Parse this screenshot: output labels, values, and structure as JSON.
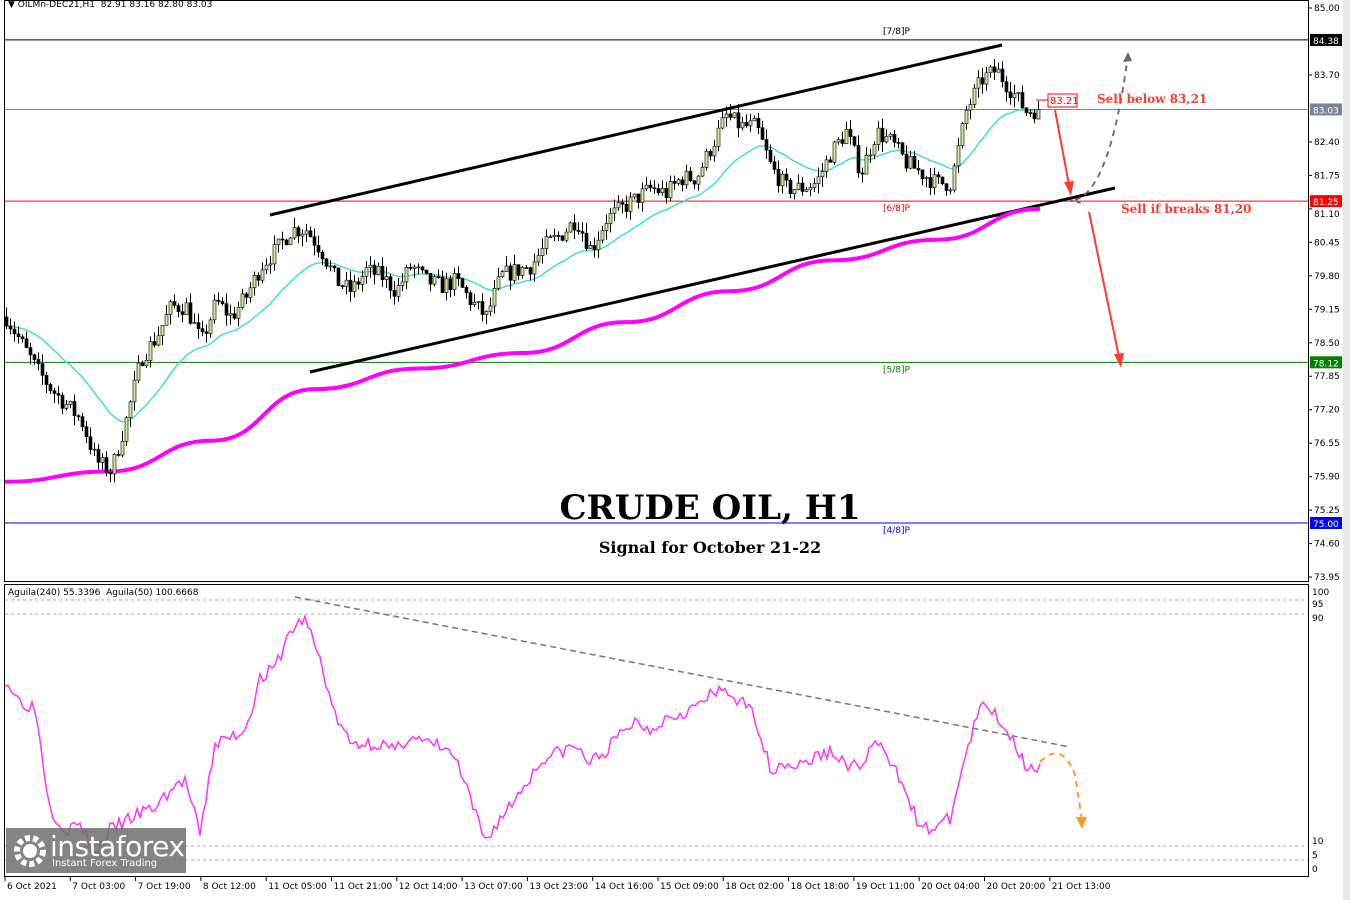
{
  "header": {
    "symbol": "OILMn-DEC21,H1",
    "ohlc": "82.91 83.16 82.80 83.03"
  },
  "indicator_header": {
    "a": "Aguila(240) 55.3396",
    "b": "Aguila(50) 100.6668"
  },
  "title": "CRUDE OIL, H1",
  "subtitle": "Signal for October 21-22",
  "notes": {
    "sell_below": "Sell below 83,21",
    "sell_breaks": "Sell if breaks 81,20",
    "entry_label": "83.21"
  },
  "logo": {
    "brand": "instaforex",
    "tagline": "Instant Forex Trading"
  },
  "colors": {
    "bull": "#c8f08c",
    "bear": "#000000",
    "fast_ma": "#40e0d0",
    "slow_ma": "#ff00ff",
    "indicator": "#ff33ff",
    "signal": "#ff3b30",
    "forecast": "#ff9922"
  },
  "chart_data": [
    {
      "type": "candlestick",
      "pane": "price",
      "ylim": [
        73.95,
        85.0
      ],
      "y_ticks": [
        "85.00",
        "83.70",
        "82.40",
        "81.75",
        "81.10",
        "80.45",
        "79.80",
        "79.15",
        "78.50",
        "77.85",
        "77.20",
        "76.55",
        "75.90",
        "75.25",
        "74.60",
        "73.95"
      ],
      "x_ticks": [
        "6 Oct 2021",
        "7 Oct 03:00",
        "7 Oct 19:00",
        "8 Oct 12:00",
        "11 Oct 05:00",
        "11 Oct 21:00",
        "12 Oct 14:00",
        "13 Oct 07:00",
        "13 Oct 23:00",
        "14 Oct 16:00",
        "15 Oct 09:00",
        "18 Oct 02:00",
        "18 Oct 18:00",
        "19 Oct 11:00",
        "20 Oct 04:00",
        "20 Oct 20:00",
        "21 Oct 13:00"
      ],
      "close_approx": [
        79.0,
        78.5,
        78.0,
        77.6,
        77.3,
        77.0,
        76.2,
        76.0,
        77.0,
        78.2,
        78.6,
        79.2,
        79.2,
        78.5,
        79.3,
        79.0,
        79.4,
        80.0,
        80.3,
        80.7,
        80.7,
        80.3,
        79.7,
        79.5,
        79.9,
        79.8,
        79.5,
        80.0,
        79.7,
        79.6,
        79.7,
        79.3,
        79.0,
        79.8,
        79.9,
        80.0,
        80.4,
        80.6,
        80.9,
        80.3,
        80.9,
        81.1,
        81.3,
        81.5,
        81.4,
        81.7,
        81.7,
        82.3,
        82.9,
        82.7,
        82.7,
        81.9,
        81.5,
        81.5,
        81.6,
        82.2,
        82.6,
        81.8,
        82.6,
        82.4,
        82.0,
        81.8,
        81.6,
        81.6,
        83.0,
        83.6,
        83.8,
        83.4,
        83.0,
        83.03
      ],
      "slow_ma_approx": [
        75.8,
        76.0,
        76.6,
        77.6,
        78.0,
        78.3,
        78.9,
        79.5,
        80.1,
        80.5,
        81.1
      ],
      "levels": [
        {
          "price": 84.38,
          "label": "84.38",
          "tag": "[7/8]P",
          "color": "#000000"
        },
        {
          "price": 83.03,
          "label": "83.03",
          "tag": "",
          "color": "#7a8599"
        },
        {
          "price": 81.25,
          "label": "81.25",
          "tag": "[6/8]P",
          "color": "#ff0000"
        },
        {
          "price": 78.12,
          "label": "78.12",
          "tag": "[5/8]P",
          "color": "#008000"
        },
        {
          "price": 75.0,
          "label": "75.00",
          "tag": "[4/8]P",
          "color": "#0000ff"
        }
      ]
    },
    {
      "type": "line",
      "pane": "indicator",
      "ylim": [
        0,
        100
      ],
      "y_ticks": [
        "100",
        "95",
        "90",
        "10",
        "5",
        "0"
      ],
      "values": [
        68,
        60,
        58,
        22,
        14,
        16,
        5,
        14,
        17,
        20,
        22,
        28,
        32,
        12,
        45,
        47,
        50,
        68,
        72,
        85,
        90,
        75,
        55,
        45,
        45,
        45,
        42,
        48,
        45,
        44,
        40,
        25,
        10,
        18,
        25,
        33,
        40,
        42,
        44,
        38,
        42,
        48,
        53,
        50,
        54,
        56,
        58,
        62,
        64,
        60,
        55,
        36,
        38,
        37,
        40,
        42,
        38,
        36,
        46,
        38,
        30,
        14,
        15,
        18,
        40,
        58,
        56,
        48,
        38,
        36
      ]
    }
  ]
}
